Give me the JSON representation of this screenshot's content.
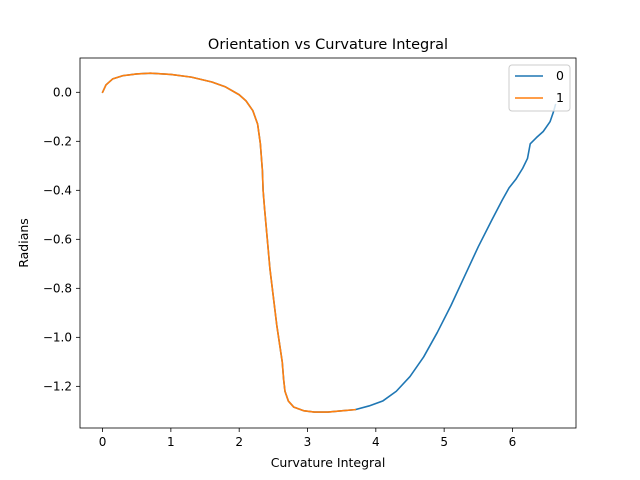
{
  "chart_data": {
    "type": "line",
    "title": "Orientation vs Curvature Integral",
    "xlabel": "Curvature Integral",
    "ylabel": "Radians",
    "xlim": [
      -0.33,
      6.93
    ],
    "ylim": [
      -1.37,
      0.14
    ],
    "xticks": [
      0,
      1,
      2,
      3,
      4,
      5,
      6
    ],
    "xtick_labels": [
      "0",
      "1",
      "2",
      "3",
      "4",
      "5",
      "6"
    ],
    "yticks": [
      0.0,
      -0.2,
      -0.4,
      -0.6,
      -0.8,
      -1.0,
      -1.2
    ],
    "ytick_labels": [
      "0.0",
      "−0.2",
      "−0.4",
      "−0.6",
      "−0.8",
      "−1.0",
      "−1.2"
    ],
    "grid": false,
    "legend_position": "top-right",
    "colors": {
      "series_0": "#1f77b4",
      "series_1": "#ff7f0e"
    },
    "series": [
      {
        "name": "0",
        "x": [
          0,
          0.05,
          0.15,
          0.3,
          0.5,
          0.7,
          1.0,
          1.3,
          1.6,
          1.8,
          2.0,
          2.1,
          2.2,
          2.27,
          2.31,
          2.34,
          2.35,
          2.37,
          2.45,
          2.55,
          2.63,
          2.65,
          2.67,
          2.72,
          2.8,
          2.95,
          3.1,
          3.3,
          3.5,
          3.7,
          3.9,
          4.1,
          4.3,
          4.5,
          4.7,
          4.9,
          5.1,
          5.3,
          5.5,
          5.7,
          5.85,
          5.95,
          6.05,
          6.15,
          6.22,
          6.26,
          6.35,
          6.45,
          6.55,
          6.6,
          6.63
        ],
        "y": [
          0.0,
          0.03,
          0.055,
          0.068,
          0.075,
          0.078,
          0.073,
          0.062,
          0.042,
          0.022,
          -0.01,
          -0.035,
          -0.075,
          -0.13,
          -0.21,
          -0.32,
          -0.4,
          -0.47,
          -0.72,
          -0.95,
          -1.1,
          -1.17,
          -1.22,
          -1.26,
          -1.285,
          -1.3,
          -1.305,
          -1.305,
          -1.3,
          -1.295,
          -1.28,
          -1.26,
          -1.22,
          -1.16,
          -1.08,
          -0.98,
          -0.87,
          -0.75,
          -0.63,
          -0.52,
          -0.44,
          -0.39,
          -0.355,
          -0.31,
          -0.27,
          -0.21,
          -0.185,
          -0.16,
          -0.12,
          -0.08,
          -0.05
        ]
      },
      {
        "name": "1",
        "x": [
          0,
          0.05,
          0.15,
          0.3,
          0.5,
          0.7,
          1.0,
          1.3,
          1.6,
          1.8,
          2.0,
          2.1,
          2.2,
          2.27,
          2.31,
          2.34,
          2.35,
          2.37,
          2.45,
          2.55,
          2.63,
          2.65,
          2.67,
          2.72,
          2.8,
          2.95,
          3.1,
          3.3,
          3.5,
          3.7
        ],
        "y": [
          0.0,
          0.03,
          0.055,
          0.068,
          0.075,
          0.078,
          0.073,
          0.062,
          0.042,
          0.022,
          -0.01,
          -0.035,
          -0.075,
          -0.13,
          -0.21,
          -0.32,
          -0.4,
          -0.47,
          -0.72,
          -0.95,
          -1.1,
          -1.17,
          -1.22,
          -1.26,
          -1.285,
          -1.3,
          -1.305,
          -1.305,
          -1.3,
          -1.295
        ]
      }
    ]
  }
}
